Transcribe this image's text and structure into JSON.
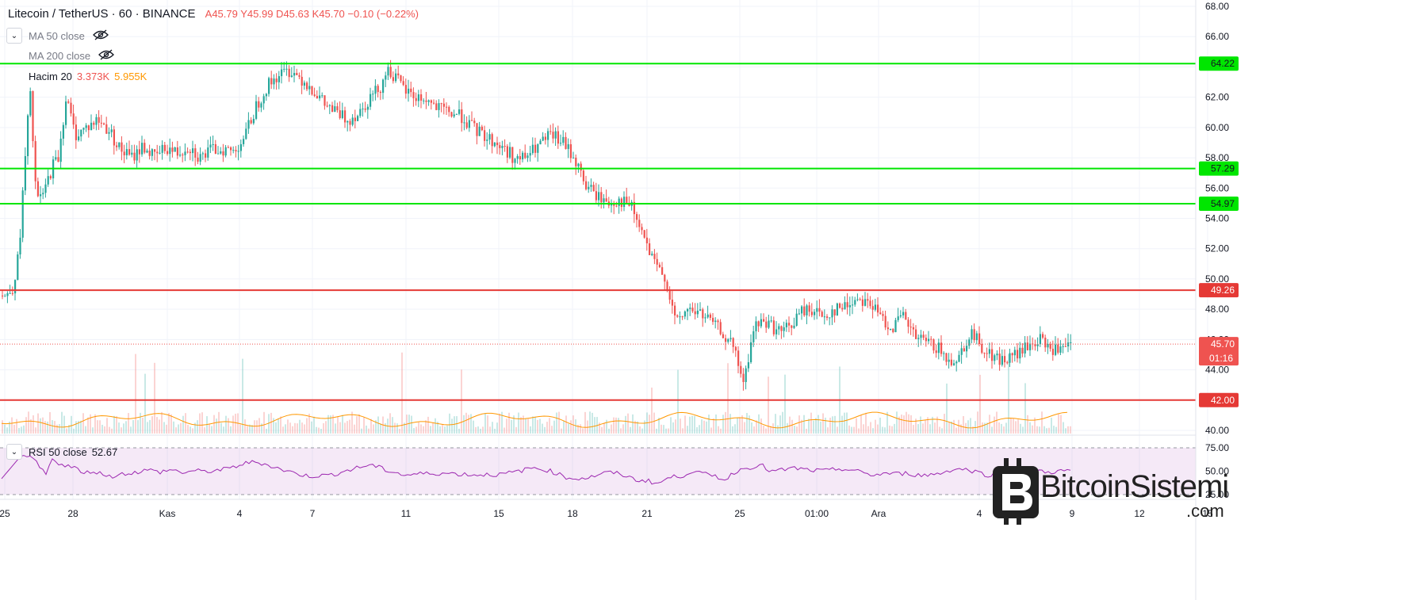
{
  "header": {
    "symbol": "Litecoin / TetherUS · 60 · BINANCE",
    "ohlc": "A45.79 Y45.99 D45.63 K45.70 −0.10 (−0.22%)"
  },
  "indicators": {
    "ma50": "MA 50 close",
    "ma200": "MA 200 close",
    "volume_label": "Hacim 20",
    "volume_v1": "3.373K",
    "volume_v2": "5.955K",
    "rsi_label": "RSI 50 close",
    "rsi_value": "52.67"
  },
  "watermark": {
    "text": "BitcoinSistemi",
    "suffix": ".com"
  },
  "colors": {
    "support": "#00e600",
    "resistance": "#e53935",
    "up": "#26a69a",
    "down": "#ef5350",
    "rsi": "#9c27b0"
  },
  "chart_data": {
    "type": "candlestick",
    "price_axis": {
      "min": 40,
      "max": 68,
      "ticks": [
        "68.00",
        "66.00",
        "64.00",
        "62.00",
        "60.00",
        "58.00",
        "56.00",
        "54.00",
        "52.00",
        "50.00",
        "48.00",
        "46.00",
        "44.00",
        "42.00",
        "40.00"
      ]
    },
    "x_ticks": [
      "25",
      "28",
      "Kas",
      "4",
      "7",
      "11",
      "15",
      "18",
      "21",
      "25",
      "01:00",
      "Ara",
      "4",
      "9",
      "12",
      "15"
    ],
    "horizontal_levels": [
      {
        "value": 64.22,
        "label": "64.22",
        "color": "#00e600"
      },
      {
        "value": 57.29,
        "label": "57.29",
        "color": "#00e600"
      },
      {
        "value": 54.97,
        "label": "54.97",
        "color": "#00e600"
      },
      {
        "value": 49.26,
        "label": "49.26",
        "color": "#e53935"
      },
      {
        "value": 42.0,
        "label": "42.00",
        "color": "#e53935"
      }
    ],
    "last_price": {
      "value": 45.7,
      "label": "45.70",
      "countdown": "01:16"
    },
    "price_path": [
      [
        0,
        48.9
      ],
      [
        0.5,
        49.5
      ],
      [
        1,
        51.5
      ],
      [
        1.5,
        57
      ],
      [
        2,
        62.5
      ],
      [
        2.6,
        55
      ],
      [
        3.3,
        55.8
      ],
      [
        4,
        57.5
      ],
      [
        4.5,
        58
      ],
      [
        5.2,
        62
      ],
      [
        6,
        59.5
      ],
      [
        7,
        60
      ],
      [
        8,
        60.5
      ],
      [
        9,
        59.8
      ],
      [
        10,
        58.5
      ],
      [
        11,
        58
      ],
      [
        12,
        58.8
      ],
      [
        13,
        58
      ],
      [
        14,
        58.7
      ],
      [
        15,
        58.3
      ],
      [
        16,
        58.8
      ],
      [
        17,
        58
      ],
      [
        18,
        58.5
      ],
      [
        19,
        58.6
      ],
      [
        20,
        58.4
      ],
      [
        21,
        59.5
      ],
      [
        22,
        61.5
      ],
      [
        23,
        62.8
      ],
      [
        24,
        63.5
      ],
      [
        25,
        63.8
      ],
      [
        26,
        63.2
      ],
      [
        27,
        62.5
      ],
      [
        28,
        61.5
      ],
      [
        29,
        61
      ],
      [
        30,
        60.5
      ],
      [
        31,
        61
      ],
      [
        32,
        62
      ],
      [
        33,
        62.8
      ],
      [
        33.5,
        63.9
      ],
      [
        34,
        63.5
      ],
      [
        35,
        62.5
      ],
      [
        36,
        62
      ],
      [
        37,
        61.8
      ],
      [
        38,
        61.2
      ],
      [
        39,
        61
      ],
      [
        40,
        60.8
      ],
      [
        41,
        60
      ],
      [
        42,
        59.5
      ],
      [
        43,
        59
      ],
      [
        44,
        58.5
      ],
      [
        45,
        57.8
      ],
      [
        46,
        58.2
      ],
      [
        47,
        58.9
      ],
      [
        48,
        59.5
      ],
      [
        49,
        59
      ],
      [
        50,
        58
      ],
      [
        51,
        56.2
      ],
      [
        52,
        55.5
      ],
      [
        53,
        55
      ],
      [
        54,
        55.2
      ],
      [
        55,
        54.8
      ],
      [
        56,
        53
      ],
      [
        57,
        51
      ],
      [
        58,
        50.2
      ],
      [
        59,
        47
      ],
      [
        60,
        48
      ],
      [
        61,
        47.8
      ],
      [
        62,
        47.2
      ],
      [
        63,
        46.5
      ],
      [
        64,
        45.5
      ],
      [
        65,
        43
      ],
      [
        65.5,
        45.5
      ],
      [
        66,
        47
      ],
      [
        67,
        47.2
      ],
      [
        68,
        46.5
      ],
      [
        69,
        46.8
      ],
      [
        70,
        47.8
      ],
      [
        71,
        48
      ],
      [
        72,
        47.5
      ],
      [
        73,
        48
      ],
      [
        74,
        48.2
      ],
      [
        75,
        48.8
      ],
      [
        76,
        48.5
      ],
      [
        77,
        47.5
      ],
      [
        78,
        46.8
      ],
      [
        79,
        47.5
      ],
      [
        80,
        46.2
      ],
      [
        81,
        45.8
      ],
      [
        82,
        45.5
      ],
      [
        83,
        44.5
      ],
      [
        84,
        45
      ],
      [
        85,
        46.5
      ],
      [
        86,
        45.5
      ],
      [
        87,
        44.8
      ],
      [
        88,
        44.6
      ],
      [
        89,
        45
      ],
      [
        90,
        45.5
      ],
      [
        91,
        46
      ],
      [
        92,
        45.4
      ],
      [
        93,
        45.2
      ],
      [
        94,
        45.7
      ]
    ],
    "rsi": {
      "min": 25,
      "max": 75,
      "ticks": [
        "75.00",
        "50.00",
        "25.00"
      ]
    }
  }
}
